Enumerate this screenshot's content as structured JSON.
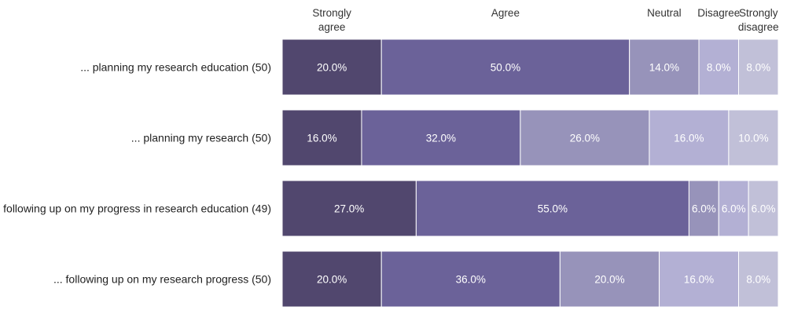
{
  "chart_data": {
    "type": "bar",
    "orientation": "horizontal",
    "stacked": true,
    "stack_unit": "percent",
    "legend_position": "top",
    "grid": false,
    "categories": [
      "... planning my research education (50)",
      "... planning my research (50)",
      "following up on my progress in research education (49)",
      "... following up on my research progress (50)"
    ],
    "series": [
      {
        "name": "Strongly agree",
        "legend_lines": [
          "Strongly",
          "agree"
        ],
        "color": "#51476e",
        "values": [
          20.0,
          16.0,
          27.0,
          20.0
        ],
        "labels": [
          "20.0%",
          "16.0%",
          "27.0%",
          "20.0%"
        ]
      },
      {
        "name": "Agree",
        "legend_lines": [
          "Agree"
        ],
        "color": "#6b6299",
        "values": [
          50.0,
          32.0,
          55.0,
          36.0
        ],
        "labels": [
          "50.0%",
          "32.0%",
          "55.0%",
          "36.0%"
        ]
      },
      {
        "name": "Neutral",
        "legend_lines": [
          "Neutral"
        ],
        "color": "#9793ba",
        "values": [
          14.0,
          26.0,
          6.0,
          20.0
        ],
        "labels": [
          "14.0%",
          "26.0%",
          "6.0%",
          "20.0%"
        ]
      },
      {
        "name": "Disagree",
        "legend_lines": [
          "Disagree"
        ],
        "color": "#b3b0d4",
        "values": [
          8.0,
          16.0,
          6.0,
          16.0
        ],
        "labels": [
          "8.0%",
          "16.0%",
          "6.0%",
          "16.0%"
        ]
      },
      {
        "name": "Strongly disagree",
        "legend_lines": [
          "Strongly",
          "disagree"
        ],
        "color": "#c1c0d8",
        "values": [
          8.0,
          10.0,
          6.0,
          8.0
        ],
        "labels": [
          "8.0%",
          "10.0%",
          "6.0%",
          "8.0%"
        ]
      }
    ]
  }
}
